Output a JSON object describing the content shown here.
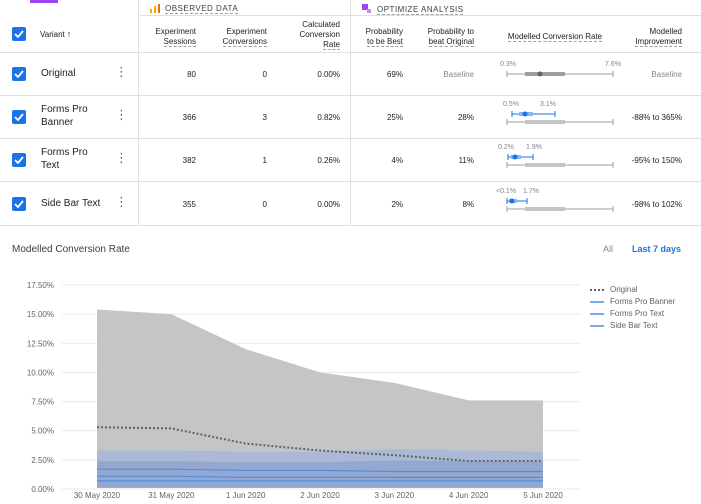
{
  "groups": {
    "observed": "OBSERVED DATA",
    "optimize": "OPTIMIZE ANALYSIS"
  },
  "columns": {
    "variant": "Variant",
    "sessions": [
      "Experiment",
      "Sessions"
    ],
    "conversions": [
      "Experiment",
      "Conversions"
    ],
    "rate": [
      "Calculated",
      "Conversion",
      "Rate"
    ],
    "prob_best": [
      "Probability",
      "to be Best"
    ],
    "prob_beat": [
      "Probability to",
      "beat Original"
    ],
    "modelled_rate": "Modelled Conversion Rate",
    "improvement": [
      "Modelled",
      "Improvement"
    ]
  },
  "rows": [
    {
      "name": [
        "Original"
      ],
      "sessions": "80",
      "conversions": "0",
      "rate": "0.00%",
      "prob_best": "69%",
      "prob_beat": "Baseline",
      "ci_low": "0.3%",
      "ci_high": "7.6%",
      "improvement": "Baseline"
    },
    {
      "name": [
        "Forms Pro",
        "Banner"
      ],
      "sessions": "366",
      "conversions": "3",
      "rate": "0.82%",
      "prob_best": "25%",
      "prob_beat": "28%",
      "ci_low": "0.5%",
      "ci_high": "3.1%",
      "improvement": "-88% to 365%"
    },
    {
      "name": [
        "Forms Pro",
        "Text"
      ],
      "sessions": "382",
      "conversions": "1",
      "rate": "0.26%",
      "prob_best": "4%",
      "prob_beat": "11%",
      "ci_low": "0.2%",
      "ci_high": "1.9%",
      "improvement": "-95% to 150%"
    },
    {
      "name": [
        "Side Bar Text"
      ],
      "sessions": "355",
      "conversions": "0",
      "rate": "0.00%",
      "prob_best": "2%",
      "prob_beat": "8%",
      "ci_low": "<0.1%",
      "ci_high": "1.7%",
      "improvement": "-98% to 102%"
    }
  ],
  "chart_section": {
    "title": "Modelled Conversion Rate",
    "range_all": "All",
    "range_last7": "Last 7 days"
  },
  "colors": {
    "accent": "#1a73e8",
    "gray_band": "#c4c5c7",
    "blue_band": "#aab9d6"
  },
  "chart_data": {
    "type": "area",
    "x": [
      "30 May 2020",
      "31 May 2020",
      "1 Jun 2020",
      "2 Jun 2020",
      "3 Jun 2020",
      "4 Jun 2020",
      "5 Jun 2020"
    ],
    "y_ticks": [
      "0.00%",
      "2.50%",
      "5.00%",
      "7.50%",
      "10.00%",
      "12.50%",
      "15.00%",
      "17.50%"
    ],
    "ylim": [
      0,
      17.5
    ],
    "bands": {
      "Original": {
        "upper": [
          15.4,
          15.0,
          12.0,
          10.0,
          9.1,
          7.6,
          7.6
        ],
        "lower": [
          0.2,
          0.2,
          0.25,
          0.3,
          0.3,
          0.35,
          0.35
        ]
      },
      "Variants": {
        "upper": [
          3.3,
          3.3,
          3.2,
          3.2,
          3.4,
          3.3,
          3.2
        ],
        "lower": [
          0.1,
          0.1,
          0.1,
          0.1,
          0.1,
          0.1,
          0.1
        ]
      }
    },
    "series": [
      {
        "name": "Original",
        "style": "dotted",
        "color": "#5f6368",
        "values": [
          5.3,
          5.2,
          3.9,
          3.3,
          2.9,
          2.4,
          2.4
        ]
      },
      {
        "name": "Forms Pro Banner",
        "style": "solid",
        "color": "#4a90e2",
        "values": [
          1.7,
          1.7,
          1.6,
          1.6,
          1.5,
          1.5,
          1.5
        ]
      },
      {
        "name": "Forms Pro Text",
        "style": "solid",
        "color": "#4a90e2",
        "values": [
          1.1,
          1.1,
          1.0,
          1.0,
          1.0,
          1.0,
          1.0
        ]
      },
      {
        "name": "Side Bar Text",
        "style": "solid",
        "color": "#4a90e2",
        "values": [
          0.7,
          0.7,
          0.7,
          0.7,
          0.7,
          0.7,
          0.7
        ]
      }
    ]
  }
}
